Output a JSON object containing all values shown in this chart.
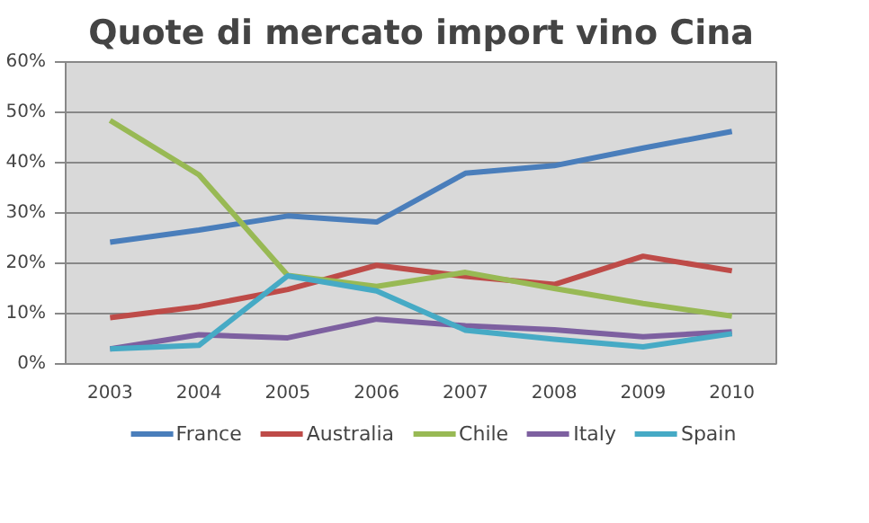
{
  "chart_data": {
    "type": "line",
    "title": "Quote di mercato import vino Cina",
    "categories": [
      "2003",
      "2004",
      "2005",
      "2006",
      "2007",
      "2008",
      "2009",
      "2010"
    ],
    "series": [
      {
        "name": "France",
        "color": "#4a7ebb",
        "values": [
          24.2,
          26.6,
          29.4,
          28.2,
          37.9,
          39.4,
          42.9,
          46.2
        ]
      },
      {
        "name": "Australia",
        "color": "#be4b48",
        "values": [
          9.2,
          11.4,
          14.8,
          19.6,
          17.4,
          15.8,
          21.4,
          18.5
        ]
      },
      {
        "name": "Chile",
        "color": "#98b954",
        "values": [
          48.4,
          37.6,
          17.6,
          15.4,
          18.2,
          15.0,
          12.0,
          9.5
        ]
      },
      {
        "name": "Italy",
        "color": "#7d60a0",
        "values": [
          3.0,
          5.8,
          5.2,
          8.9,
          7.6,
          6.8,
          5.4,
          6.4
        ]
      },
      {
        "name": "Spain",
        "color": "#46aac5",
        "values": [
          3.0,
          3.7,
          17.5,
          14.5,
          6.7,
          4.9,
          3.4,
          6.0
        ]
      }
    ],
    "ylim": [
      0,
      60
    ],
    "yticks": [
      {
        "value": 0,
        "label": "0%"
      },
      {
        "value": 10,
        "label": "10%"
      },
      {
        "value": 20,
        "label": "20%"
      },
      {
        "value": 30,
        "label": "30%"
      },
      {
        "value": 40,
        "label": "40%"
      },
      {
        "value": 50,
        "label": "50%"
      },
      {
        "value": 60,
        "label": "60%"
      }
    ],
    "grid": "y",
    "legend": "bottom",
    "marker": "none",
    "line_style": "solid"
  }
}
